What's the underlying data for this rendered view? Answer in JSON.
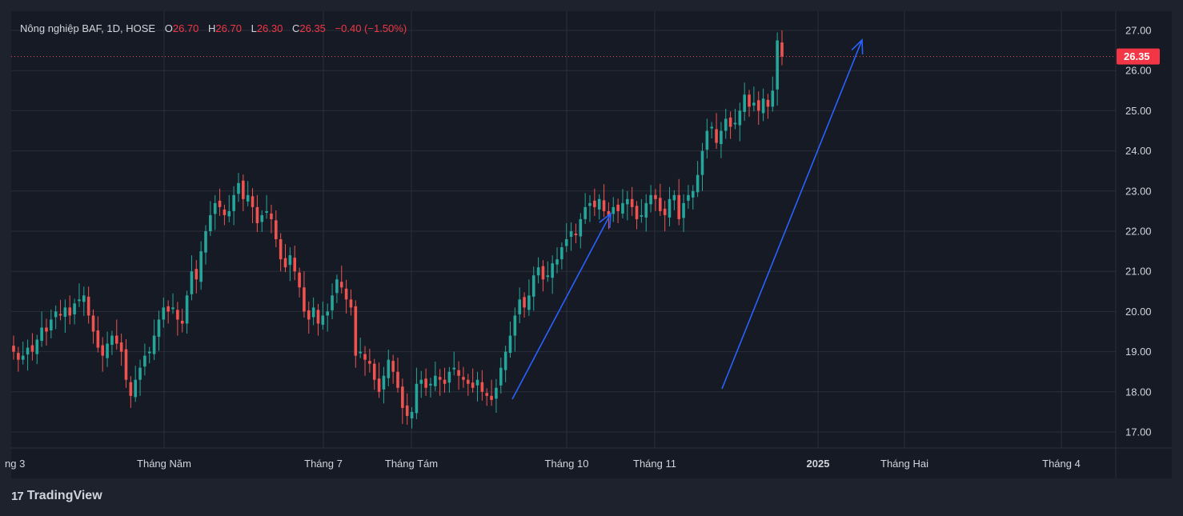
{
  "legend": {
    "symbol": "Nông nghiệp BAF, 1D, HOSE",
    "o_label": "O",
    "o_value": "26.70",
    "h_label": "H",
    "h_value": "26.70",
    "l_label": "L",
    "l_value": "26.30",
    "c_label": "C",
    "c_value": "26.35",
    "change": "−0.40 (−1.50%)"
  },
  "branding": {
    "logo_text": "TradingView",
    "logo_mark": "17"
  },
  "chart_data": {
    "type": "candlestick",
    "title": "Nông nghiệp BAF, 1D, HOSE",
    "ylim": [
      16.6,
      27.5
    ],
    "y_ticks": [
      "27.00",
      "26.00",
      "25.00",
      "24.00",
      "23.00",
      "22.00",
      "21.00",
      "20.00",
      "19.00",
      "18.00",
      "17.00"
    ],
    "x_ticks": [
      {
        "label": "ng 3",
        "bold": false
      },
      {
        "label": "Tháng Năm",
        "bold": false
      },
      {
        "label": "Tháng 7",
        "bold": false
      },
      {
        "label": "Tháng Tám",
        "bold": false
      },
      {
        "label": "Tháng 10",
        "bold": false
      },
      {
        "label": "Tháng 11",
        "bold": false
      },
      {
        "label": "2025",
        "bold": true
      },
      {
        "label": "Tháng Hai",
        "bold": false
      },
      {
        "label": "Tháng 4",
        "bold": false
      }
    ],
    "last_price": 26.35,
    "last_price_label": "26.35",
    "colors": {
      "up": "#26a69a",
      "down": "#ef5350",
      "background": "#161a25",
      "grid": "#2a2e39",
      "text": "#d1d4dc",
      "arrow": "#2962ff",
      "annotation": "#9c27b0"
    },
    "closes": [
      19.0,
      18.8,
      18.9,
      19.1,
      19.0,
      19.3,
      19.6,
      19.5,
      19.8,
      20.0,
      19.9,
      20.1,
      19.9,
      20.2,
      20.3,
      20.4,
      19.9,
      19.5,
      19.1,
      18.9,
      19.2,
      19.4,
      19.2,
      19.0,
      18.3,
      17.9,
      18.3,
      18.6,
      18.9,
      19.0,
      19.4,
      19.8,
      20.1,
      20.0,
      20.1,
      19.8,
      19.7,
      20.4,
      21.0,
      20.8,
      21.5,
      22.0,
      22.4,
      22.7,
      22.6,
      22.4,
      22.5,
      22.9,
      23.2,
      22.8,
      22.9,
      22.6,
      22.2,
      22.4,
      22.5,
      22.3,
      21.8,
      21.3,
      21.1,
      21.4,
      21.0,
      20.6,
      20.0,
      19.8,
      20.1,
      19.7,
      19.9,
      20.0,
      20.4,
      20.8,
      20.6,
      20.3,
      20.1,
      18.9,
      19.0,
      18.8,
      18.7,
      18.3,
      18.0,
      18.4,
      18.8,
      18.5,
      18.1,
      17.6,
      17.4,
      17.5,
      18.2,
      18.3,
      18.1,
      18.2,
      18.4,
      18.3,
      18.2,
      18.5,
      18.6,
      18.4,
      18.3,
      18.2,
      18.1,
      18.3,
      18.0,
      17.9,
      17.8,
      18.1,
      18.6,
      19.0,
      19.4,
      19.9,
      20.3,
      20.1,
      20.4,
      20.9,
      21.1,
      20.8,
      20.9,
      21.2,
      21.3,
      21.6,
      21.8,
      22.0,
      21.9,
      22.3,
      22.6,
      22.7,
      22.6,
      22.8,
      22.5,
      22.4,
      22.6,
      22.5,
      22.7,
      22.8,
      22.6,
      22.3,
      22.4,
      22.7,
      22.9,
      22.8,
      22.5,
      22.4,
      22.8,
      22.9,
      22.3,
      22.7,
      22.9,
      23.0,
      23.4,
      24.0,
      24.5,
      24.6,
      24.2,
      24.5,
      24.8,
      24.6,
      24.7,
      25.0,
      25.4,
      25.1,
      25.2,
      25.0,
      25.3,
      25.1,
      25.5,
      26.75,
      26.35
    ]
  }
}
